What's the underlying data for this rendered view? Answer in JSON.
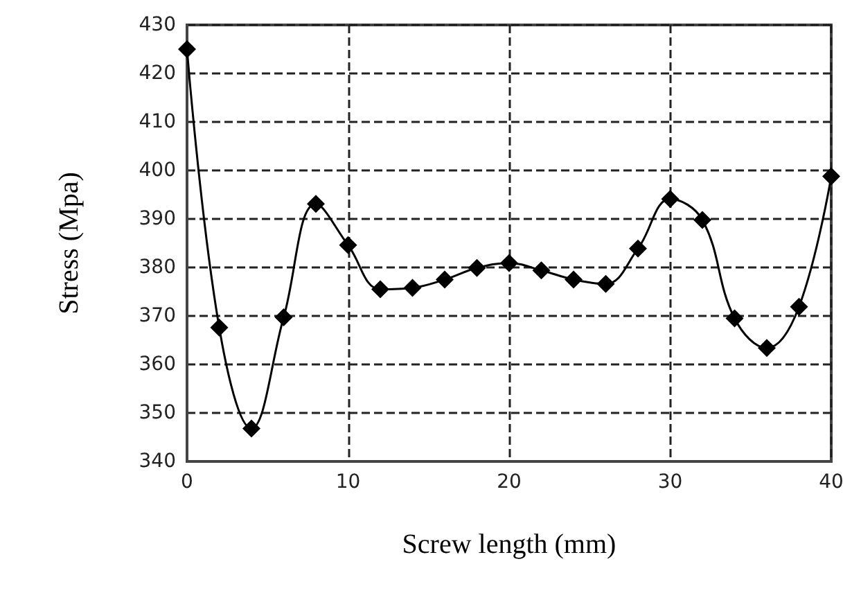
{
  "chart_data": {
    "type": "line",
    "xlabel": "Screw length (mm)",
    "ylabel": "Stress (Mpa)",
    "x": [
      0,
      2,
      4,
      6,
      8,
      10,
      12,
      14,
      16,
      18,
      20,
      22,
      24,
      26,
      28,
      30,
      32,
      34,
      36,
      38,
      40
    ],
    "series": [
      {
        "color": "#000000",
        "values": [
          425,
          367.6,
          346.8,
          369.7,
          393.1,
          384.6,
          375.5,
          375.8,
          377.5,
          379.9,
          380.9,
          379.4,
          377.5,
          376.6,
          383.9,
          394.1,
          389.8,
          369.5,
          363.4,
          371.9,
          398.8
        ]
      }
    ],
    "xlim": [
      0,
      40
    ],
    "xticks": [
      0,
      10,
      20,
      30,
      40
    ],
    "ylim": [
      340,
      430
    ],
    "yticks": [
      340,
      350,
      360,
      370,
      380,
      390,
      400,
      410,
      420,
      430
    ],
    "grid": true,
    "marker": "diamond",
    "line_style": "solid"
  }
}
